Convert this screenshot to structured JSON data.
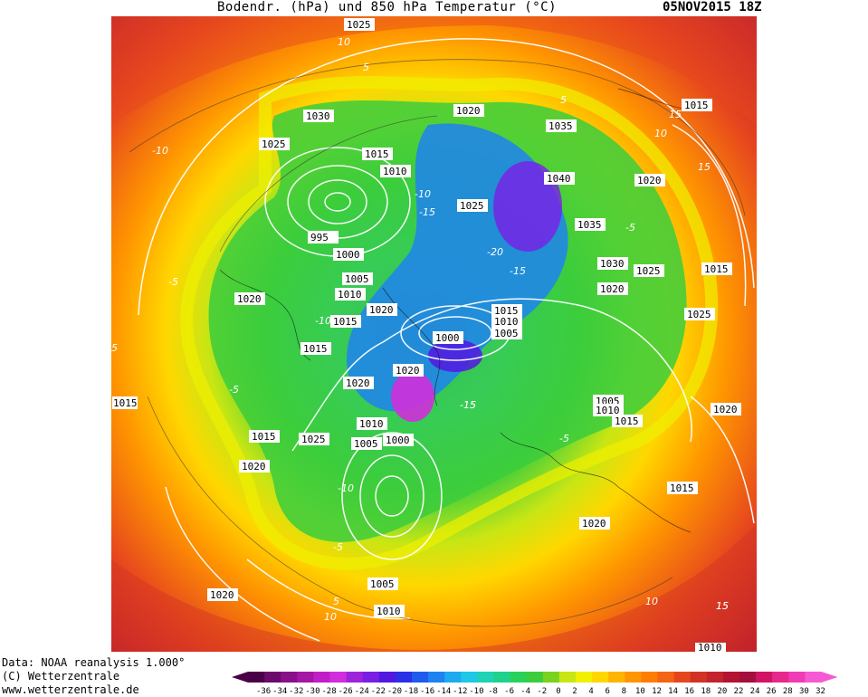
{
  "header": {
    "title": "Bodendr. (hPa) und 850 hPa Temperatur (°C)",
    "datestamp": "05NOV2015 18Z"
  },
  "footer": {
    "line1": "Data: NOAA reanalysis 1.000°",
    "line2": "(C) Wetterzentrale",
    "line3": "www.wetterzentrale.de"
  },
  "legend": {
    "ticks": [
      "-36",
      "-34",
      "-32",
      "-30",
      "-28",
      "-26",
      "-24",
      "-22",
      "-20",
      "-18",
      "-16",
      "-14",
      "-12",
      "-10",
      "-8",
      "-6",
      "-4",
      "-2",
      "0",
      "2",
      "4",
      "6",
      "8",
      "10",
      "12",
      "14",
      "16",
      "18",
      "20",
      "22",
      "24",
      "26",
      "28",
      "30",
      "32"
    ],
    "colors": [
      "#4a0046",
      "#6b0a6b",
      "#8a108a",
      "#a516a5",
      "#c21ec8",
      "#d12ddc",
      "#a023dc",
      "#7a1ee6",
      "#5218e0",
      "#2a30e8",
      "#1e5aee",
      "#1e82f0",
      "#1eaaf0",
      "#1ec8e6",
      "#1ed2b4",
      "#1ed28c",
      "#28d25a",
      "#3ccd3c",
      "#78d21e",
      "#c8e614",
      "#f0f000",
      "#ffd700",
      "#ffb400",
      "#ff9600",
      "#ff7d00",
      "#f56414",
      "#e6461e",
      "#d23223",
      "#c3232d",
      "#b41432",
      "#a50f3c",
      "#d21464",
      "#e6288c",
      "#f03cb4",
      "#f55ad2"
    ]
  },
  "map": {
    "pressure_labels": [
      "1025",
      "1030",
      "1025",
      "1015",
      "1010",
      "995",
      "1000",
      "1005",
      "1010",
      "1015",
      "1015",
      "1020",
      "1020",
      "1020",
      "1025",
      "1010",
      "1005",
      "1000",
      "1025",
      "1000",
      "1005",
      "1010",
      "1015",
      "1020",
      "1020",
      "1020",
      "1035",
      "1040",
      "1035",
      "1030",
      "1025",
      "1020",
      "1015",
      "1005",
      "1010",
      "1015",
      "1015",
      "1025",
      "1020",
      "1015",
      "1020",
      "1010",
      "1005",
      "1010",
      "1020",
      "1020",
      "1015",
      "1015"
    ],
    "temperature_labels": [
      "10",
      "5",
      "-10",
      "-5",
      "5",
      "15",
      "10",
      "15",
      "-5",
      "-10",
      "-15",
      "-15",
      "-20",
      "-15",
      "-10",
      "-5",
      "10",
      "5",
      "-10",
      "-5",
      "5",
      "10",
      "15",
      "-5",
      "-15",
      "15"
    ]
  }
}
